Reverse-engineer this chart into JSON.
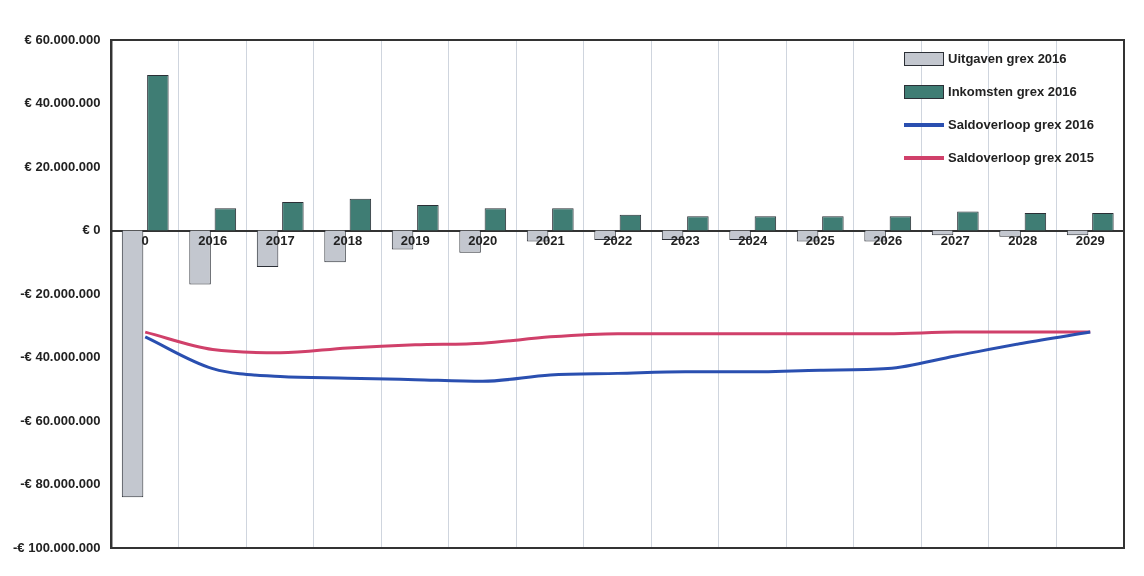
{
  "chart_data": {
    "type": "bar",
    "categories": [
      "0",
      "2016",
      "2017",
      "2018",
      "2019",
      "2020",
      "2021",
      "2022",
      "2023",
      "2024",
      "2025",
      "2026",
      "2027",
      "2028",
      "2029"
    ],
    "series": [
      {
        "name": "Uitgaven grex 2016",
        "color": "#c3c7cf",
        "values": [
          -84000000,
          -17000000,
          -11500000,
          -10000000,
          -6000000,
          -7000000,
          -3500000,
          -3000000,
          -3000000,
          -3000000,
          -3500000,
          -3500000,
          -1500000,
          -2000000,
          -1500000
        ]
      },
      {
        "name": "Inkomsten grex 2016",
        "color": "#3f7d74",
        "values": [
          49000000,
          7000000,
          9000000,
          10000000,
          8000000,
          7000000,
          7000000,
          5000000,
          4500000,
          4500000,
          4500000,
          4500000,
          6000000,
          5500000,
          5500000
        ]
      },
      {
        "name": "Saldoverloop grex 2016",
        "type": "line",
        "color": "#2a4fb0",
        "values": [
          -33500000,
          -43500000,
          -46000000,
          -46500000,
          -47000000,
          -47500000,
          -45500000,
          -45000000,
          -44500000,
          -44500000,
          -44000000,
          -43500000,
          -39500000,
          -35500000,
          -32000000
        ]
      },
      {
        "name": "Saldoverloop grex 2015",
        "type": "line",
        "color": "#d0406a",
        "values": [
          -32000000,
          -37500000,
          -38500000,
          -37000000,
          -36000000,
          -35500000,
          -33500000,
          -32500000,
          -32500000,
          -32500000,
          -32500000,
          -32500000,
          -32000000,
          -32000000,
          -32000000
        ]
      }
    ],
    "ylim": [
      -100000000,
      60000000
    ],
    "yticks": [
      {
        "value": -100000000,
        "label": "-€ 100.000.000"
      },
      {
        "value": -80000000,
        "label": "-€ 80.000.000"
      },
      {
        "value": -60000000,
        "label": "-€ 60.000.000"
      },
      {
        "value": -40000000,
        "label": "-€ 40.000.000"
      },
      {
        "value": -20000000,
        "label": "-€ 20.000.000"
      },
      {
        "value": 0,
        "label": "€ 0"
      },
      {
        "value": 20000000,
        "label": "€ 20.000.000"
      },
      {
        "value": 40000000,
        "label": "€ 40.000.000"
      },
      {
        "value": 60000000,
        "label": "€ 60.000.000"
      }
    ],
    "grid": "x",
    "legend": "top right",
    "marker": "none"
  }
}
